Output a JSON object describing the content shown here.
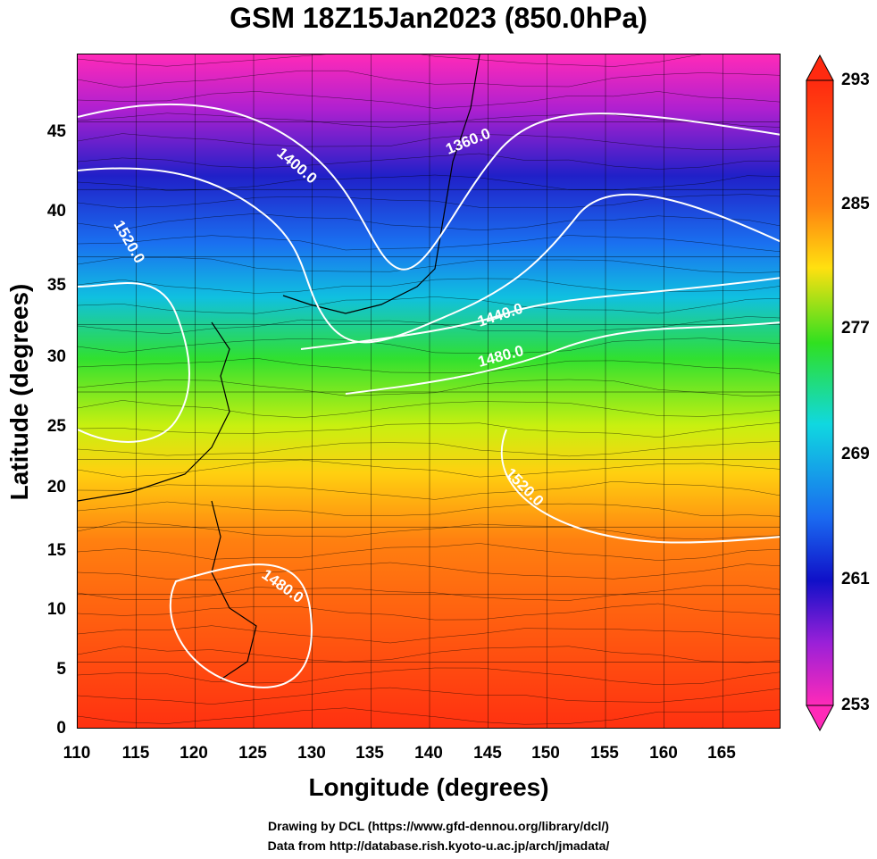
{
  "title": "GSM 18Z15Jan2023 (850.0hPa)",
  "xaxis": {
    "label": "Longitude (degrees)",
    "ticks": [
      "110",
      "115",
      "120",
      "125",
      "130",
      "135",
      "140",
      "145",
      "150",
      "155",
      "160",
      "165"
    ],
    "range": [
      110,
      170
    ]
  },
  "yaxis": {
    "label": "Latitude  (degrees)",
    "ticks": [
      "0",
      "5",
      "10",
      "15",
      "20",
      "25",
      "30",
      "35",
      "40",
      "45"
    ],
    "range": [
      0,
      50
    ]
  },
  "colorbar": {
    "ticks": [
      "293",
      "285",
      "277",
      "269",
      "261",
      "253"
    ],
    "range": [
      253,
      293
    ],
    "colors": [
      "#ff2ab8",
      "#9a20d8",
      "#1010c8",
      "#1a6af0",
      "#10c8f0",
      "#20d8a0",
      "#30e020",
      "#c8f010",
      "#ffe010",
      "#ffa010",
      "#ff5010",
      "#ff2a10"
    ]
  },
  "contours": [
    {
      "label": "1360.0"
    },
    {
      "label": "1400.0"
    },
    {
      "label": "1520.0"
    },
    {
      "label": "1440.0"
    },
    {
      "label": "1480.0"
    },
    {
      "label": "1520.0"
    },
    {
      "label": "1480.0"
    }
  ],
  "credits": {
    "line1": "Drawing by DCL (https://www.gfd-dennou.org/library/dcl/)",
    "line2": "Data from http://database.rish.kyoto-u.ac.jp/arch/jmadata/"
  }
}
